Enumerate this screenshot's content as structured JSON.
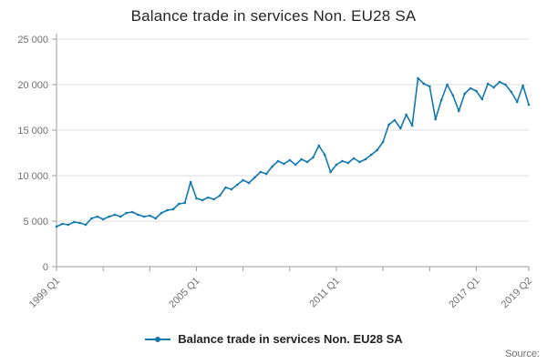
{
  "title": "Balance trade in services Non. EU28 SA",
  "legend": {
    "label": "Balance trade in services Non. EU28 SA"
  },
  "source_label": "Source:",
  "colors": {
    "line": "#1178b0",
    "grid": "#dcdcdc",
    "axis": "#9e9e9e",
    "tick_text": "#6f6f6f",
    "title_text": "#262626"
  },
  "chart_data": {
    "type": "line",
    "title": "Balance trade in services Non. EU28 SA",
    "xlabel": "",
    "ylabel": "",
    "ylim": [
      0,
      25000
    ],
    "grid": true,
    "legend_position": "bottom",
    "y_tick_values": [
      0,
      5000,
      10000,
      15000,
      20000,
      25000
    ],
    "y_tick_labels": [
      "0",
      "5 000",
      "10 000",
      "15 000",
      "20 000",
      "25 000"
    ],
    "x_ticks": [
      {
        "pos": 0,
        "label": "1999 Q1"
      },
      {
        "pos": 24,
        "label": "2005 Q1"
      },
      {
        "pos": 48,
        "label": "2011 Q1"
      },
      {
        "pos": 72,
        "label": "2017 Q1"
      },
      {
        "pos": 81,
        "label": "2019 Q2"
      }
    ],
    "x_minor_ticks": [
      8,
      16,
      32,
      40,
      56,
      64
    ],
    "x": [
      "1999 Q1",
      "1999 Q2",
      "1999 Q3",
      "1999 Q4",
      "2000 Q1",
      "2000 Q2",
      "2000 Q3",
      "2000 Q4",
      "2001 Q1",
      "2001 Q2",
      "2001 Q3",
      "2001 Q4",
      "2002 Q1",
      "2002 Q2",
      "2002 Q3",
      "2002 Q4",
      "2003 Q1",
      "2003 Q2",
      "2003 Q3",
      "2003 Q4",
      "2004 Q1",
      "2004 Q2",
      "2004 Q3",
      "2004 Q4",
      "2005 Q1",
      "2005 Q2",
      "2005 Q3",
      "2005 Q4",
      "2006 Q1",
      "2006 Q2",
      "2006 Q3",
      "2006 Q4",
      "2007 Q1",
      "2007 Q2",
      "2007 Q3",
      "2007 Q4",
      "2008 Q1",
      "2008 Q2",
      "2008 Q3",
      "2008 Q4",
      "2009 Q1",
      "2009 Q2",
      "2009 Q3",
      "2009 Q4",
      "2010 Q1",
      "2010 Q2",
      "2010 Q3",
      "2010 Q4",
      "2011 Q1",
      "2011 Q2",
      "2011 Q3",
      "2011 Q4",
      "2012 Q1",
      "2012 Q2",
      "2012 Q3",
      "2012 Q4",
      "2013 Q1",
      "2013 Q2",
      "2013 Q3",
      "2013 Q4",
      "2014 Q1",
      "2014 Q2",
      "2014 Q3",
      "2014 Q4",
      "2015 Q1",
      "2015 Q2",
      "2015 Q3",
      "2015 Q4",
      "2016 Q1",
      "2016 Q2",
      "2016 Q3",
      "2016 Q4",
      "2017 Q1",
      "2017 Q2",
      "2017 Q3",
      "2017 Q4",
      "2018 Q1",
      "2018 Q2",
      "2018 Q3",
      "2018 Q4",
      "2019 Q1",
      "2019 Q2"
    ],
    "series": [
      {
        "name": "Balance trade in services Non. EU28 SA",
        "values": [
          4400,
          4700,
          4600,
          4900,
          4800,
          4600,
          5300,
          5500,
          5200,
          5500,
          5700,
          5500,
          5900,
          6000,
          5700,
          5500,
          5600,
          5300,
          5900,
          6200,
          6300,
          6900,
          7000,
          9300,
          7500,
          7300,
          7600,
          7400,
          7800,
          8700,
          8500,
          9000,
          9500,
          9200,
          9800,
          10400,
          10200,
          11000,
          11600,
          11300,
          11700,
          11200,
          11800,
          11500,
          12000,
          13300,
          12300,
          10400,
          11200,
          11600,
          11400,
          11900,
          11500,
          11800,
          12300,
          12800,
          13700,
          15600,
          16100,
          15200,
          16700,
          15500,
          20700,
          20100,
          19800,
          16200,
          18300,
          20000,
          18800,
          17100,
          19000,
          19600,
          19300,
          18400,
          20100,
          19700,
          20300,
          20000,
          19200,
          18100,
          19900,
          17800
        ]
      }
    ]
  }
}
